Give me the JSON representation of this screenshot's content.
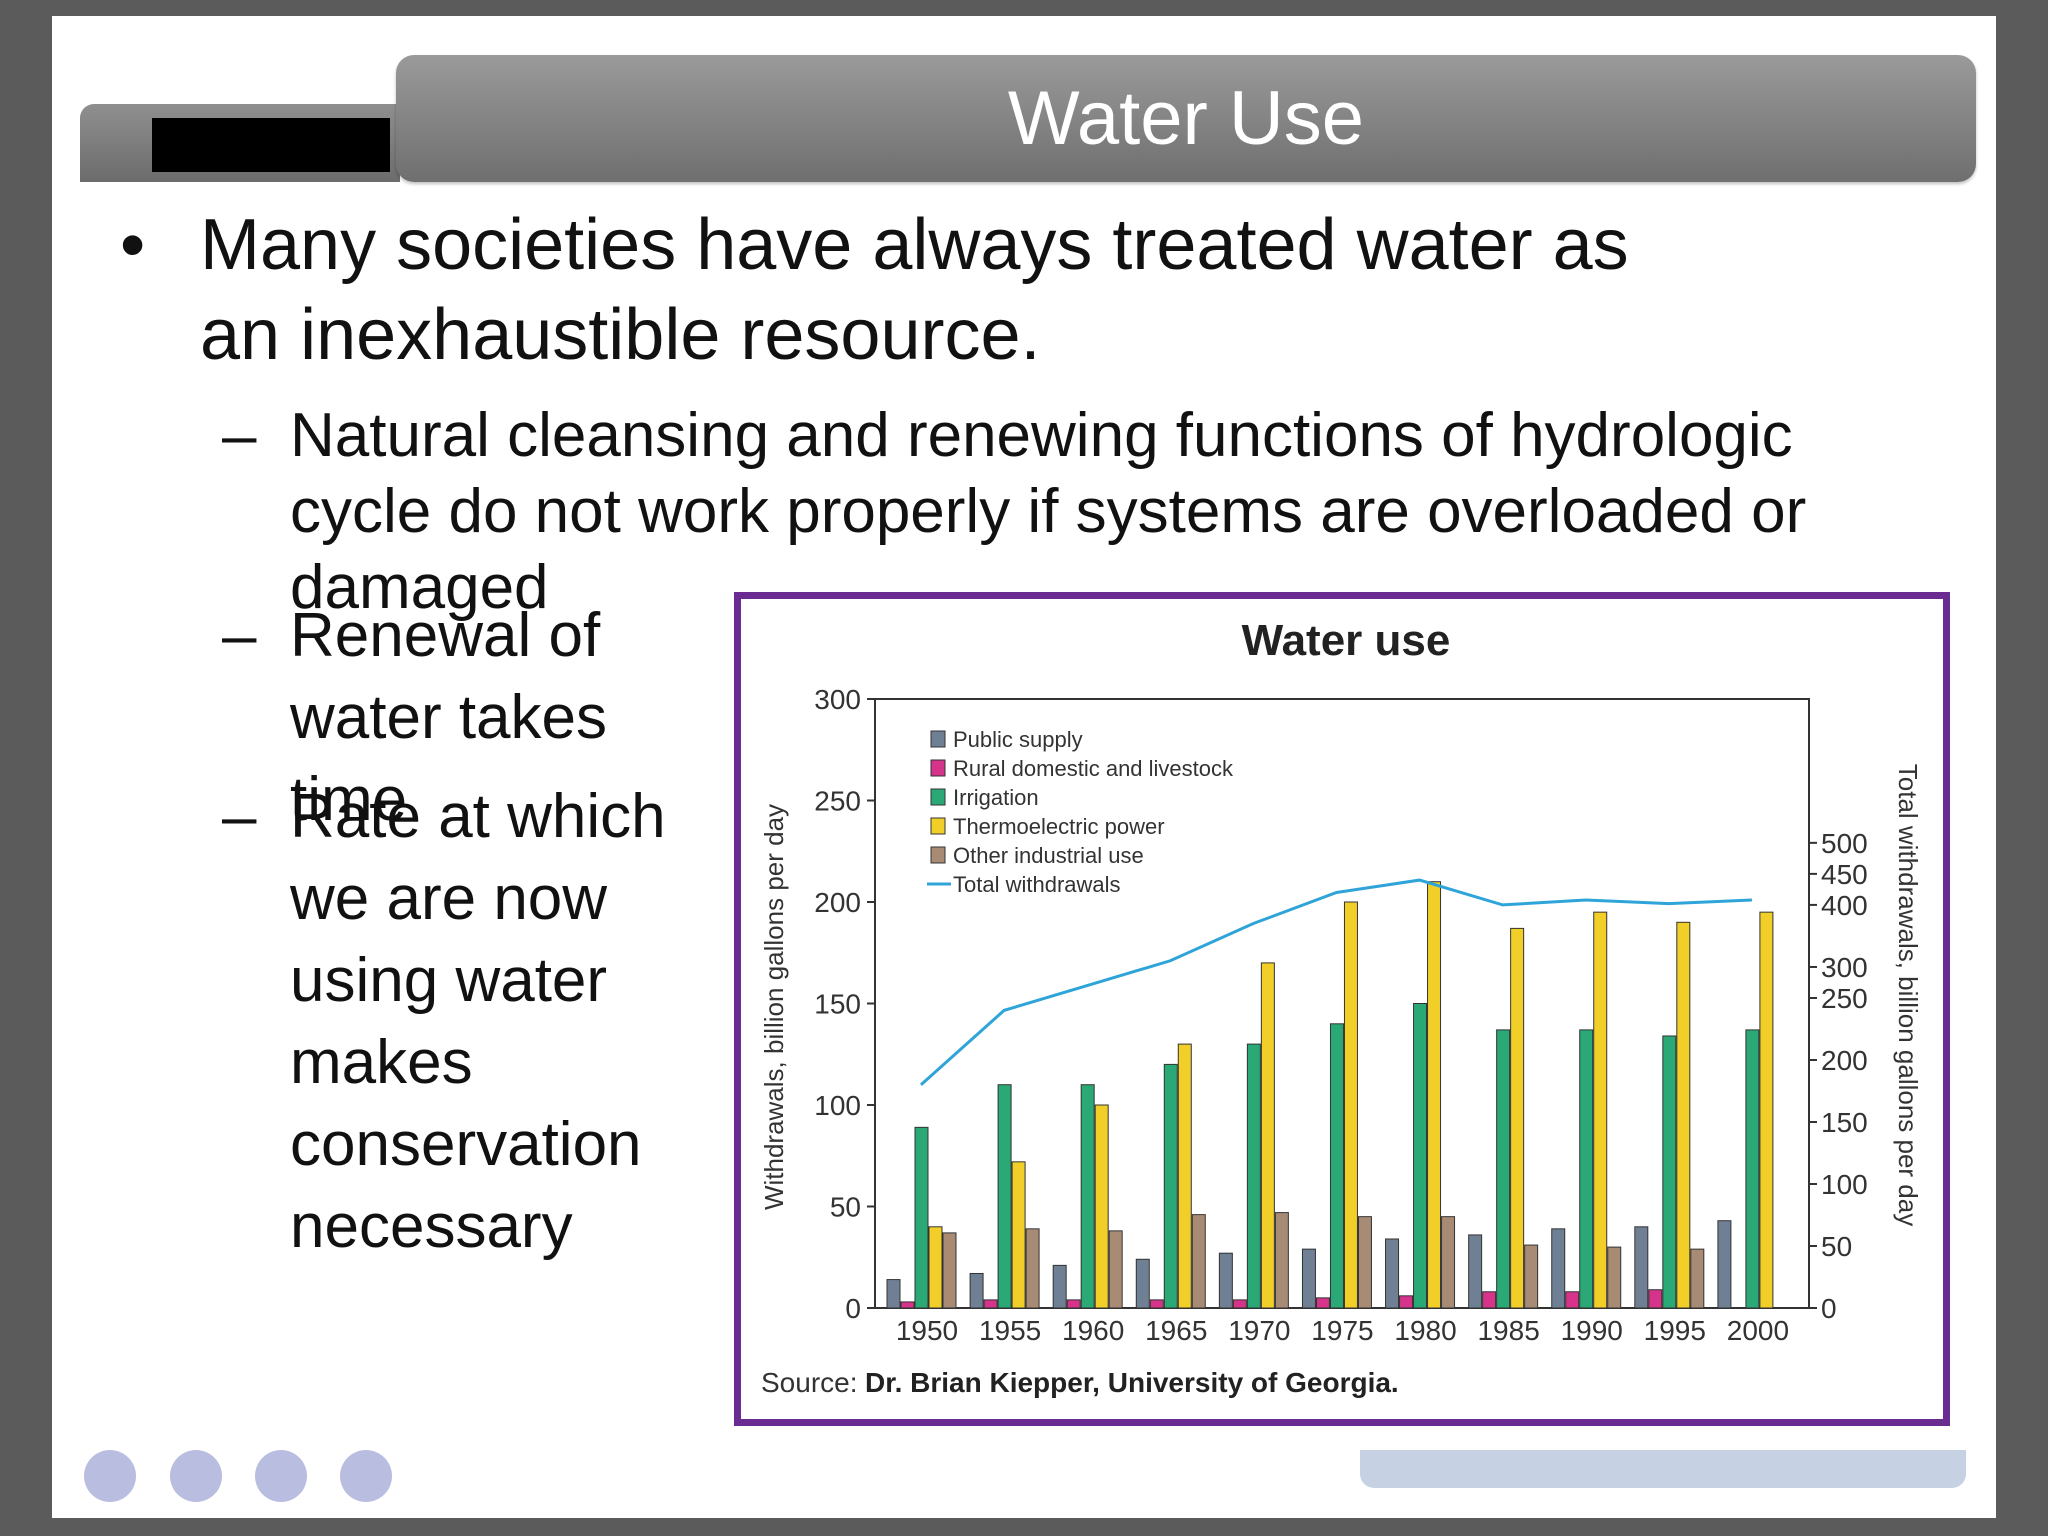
{
  "slide": {
    "title": "Water Use",
    "bullet_mark": "•",
    "dash_mark": "–",
    "bullets": [
      "Many societies have always treated water as an inexhaustible resource.",
      "Natural cleansing and renewing functions of hydrologic cycle do not work properly if systems are overloaded or damaged",
      "Renewal of water takes time",
      "Rate at which we are now using water makes conservation necessary"
    ]
  },
  "chart_data": {
    "type": "bar",
    "title": "Water use",
    "categories": [
      "1950",
      "1955",
      "1960",
      "1965",
      "1970",
      "1975",
      "1980",
      "1985",
      "1990",
      "1995",
      "2000"
    ],
    "ylabel": "Withdrawals, billion gallons per day",
    "y2label": "Total withdrawals, billion gallons per day",
    "ylim": [
      0,
      300
    ],
    "yticks": [
      0,
      50,
      100,
      150,
      200,
      250,
      300
    ],
    "y2ticks": [
      0,
      50,
      100,
      150,
      200,
      250,
      300,
      400,
      450,
      500
    ],
    "series": [
      {
        "name": "Public supply",
        "color": "#6f7f94",
        "values": [
          14,
          17,
          21,
          24,
          27,
          29,
          34,
          36,
          39,
          40,
          43
        ]
      },
      {
        "name": "Rural domestic and livestock",
        "color": "#d6338a",
        "values": [
          3,
          4,
          4,
          4,
          4,
          5,
          6,
          8,
          8,
          9,
          0
        ]
      },
      {
        "name": "Irrigation",
        "color": "#2aa875",
        "values": [
          89,
          110,
          110,
          120,
          130,
          140,
          150,
          137,
          137,
          134,
          137
        ]
      },
      {
        "name": "Thermoelectric power",
        "color": "#f1cf28",
        "values": [
          40,
          72,
          100,
          130,
          170,
          200,
          210,
          187,
          195,
          190,
          195
        ]
      },
      {
        "name": "Other industrial use",
        "color": "#a88b74",
        "values": [
          37,
          39,
          38,
          46,
          47,
          45,
          45,
          31,
          30,
          29,
          0
        ]
      }
    ],
    "line": {
      "name": "Total withdrawals",
      "color": "#2ea4d8",
      "values": [
        180,
        240,
        270,
        310,
        370,
        420,
        440,
        400,
        408,
        402,
        408
      ]
    },
    "source_label": "Source:",
    "source_text": "Dr. Brian Kiepper, University of Georgia."
  }
}
